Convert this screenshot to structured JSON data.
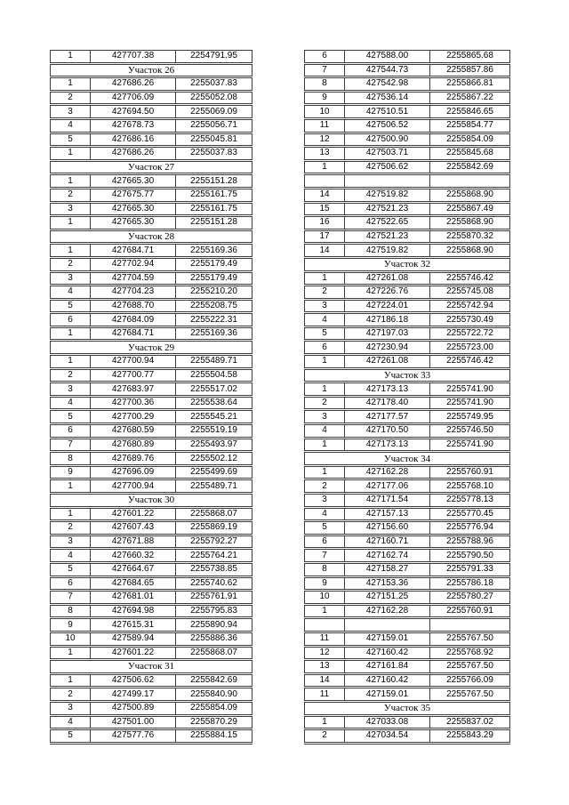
{
  "colors": {
    "background": "#ffffff",
    "table_border": "#3b3b3b",
    "text": "#000000"
  },
  "left_table": {
    "rows": [
      {
        "t": "d",
        "c": [
          "1",
          "427707.38",
          "2254791.95"
        ]
      },
      {
        "t": "h",
        "label": "Участок 26"
      },
      {
        "t": "d",
        "c": [
          "1",
          "427686.26",
          "2255037.83"
        ]
      },
      {
        "t": "d",
        "c": [
          "2",
          "427706.09",
          "2255052.08"
        ]
      },
      {
        "t": "d",
        "c": [
          "3",
          "427694.50",
          "2255069.09"
        ]
      },
      {
        "t": "d",
        "c": [
          "4",
          "427678.73",
          "2255056.71"
        ]
      },
      {
        "t": "d",
        "c": [
          "5",
          "427686.16",
          "2255045.81"
        ]
      },
      {
        "t": "d",
        "c": [
          "1",
          "427686.26",
          "2255037.83"
        ]
      },
      {
        "t": "h",
        "label": "Участок 27"
      },
      {
        "t": "d",
        "c": [
          "1",
          "427665.30",
          "2255151.28"
        ]
      },
      {
        "t": "d",
        "c": [
          "2",
          "427675.77",
          "2255161.75"
        ]
      },
      {
        "t": "d",
        "c": [
          "3",
          "427665.30",
          "2255161.75"
        ]
      },
      {
        "t": "d",
        "c": [
          "1",
          "427665.30",
          "2255151.28"
        ]
      },
      {
        "t": "h",
        "label": "Участок 28"
      },
      {
        "t": "d",
        "c": [
          "1",
          "427684.71",
          "2255169.36"
        ]
      },
      {
        "t": "d",
        "c": [
          "2",
          "427702.94",
          "2255179.49"
        ]
      },
      {
        "t": "d",
        "c": [
          "3",
          "427704.59",
          "2255179.49"
        ]
      },
      {
        "t": "d",
        "c": [
          "4",
          "427704.23",
          "2255210.20"
        ]
      },
      {
        "t": "d",
        "c": [
          "5",
          "427688.70",
          "2255208.75"
        ]
      },
      {
        "t": "d",
        "c": [
          "6",
          "427684.09",
          "2255222.31"
        ]
      },
      {
        "t": "d",
        "c": [
          "1",
          "427684.71",
          "2255169.36"
        ]
      },
      {
        "t": "h",
        "label": "Участок 29"
      },
      {
        "t": "d",
        "c": [
          "1",
          "427700.94",
          "2255489.71"
        ]
      },
      {
        "t": "d",
        "c": [
          "2",
          "427700.77",
          "2255504.58"
        ]
      },
      {
        "t": "d",
        "c": [
          "3",
          "427683.97",
          "2255517.02"
        ]
      },
      {
        "t": "d",
        "c": [
          "4",
          "427700.36",
          "2255538.64"
        ]
      },
      {
        "t": "d",
        "c": [
          "5",
          "427700.29",
          "2255545.21"
        ]
      },
      {
        "t": "d",
        "c": [
          "6",
          "427680.59",
          "2255519.19"
        ]
      },
      {
        "t": "d",
        "c": [
          "7",
          "427680.89",
          "2255493.97"
        ]
      },
      {
        "t": "d",
        "c": [
          "8",
          "427689.76",
          "2255502.12"
        ]
      },
      {
        "t": "d",
        "c": [
          "9",
          "427696.09",
          "2255499.69"
        ]
      },
      {
        "t": "d",
        "c": [
          "1",
          "427700.94",
          "2255489.71"
        ]
      },
      {
        "t": "h",
        "label": "Участок 30"
      },
      {
        "t": "d",
        "c": [
          "1",
          "427601.22",
          "2255868.07"
        ]
      },
      {
        "t": "d",
        "c": [
          "2",
          "427607.43",
          "2255869.19"
        ]
      },
      {
        "t": "d",
        "c": [
          "3",
          "427671.88",
          "2255792.27"
        ]
      },
      {
        "t": "d",
        "c": [
          "4",
          "427660.32",
          "2255764.21"
        ]
      },
      {
        "t": "d",
        "c": [
          "5",
          "427664.67",
          "2255738.85"
        ]
      },
      {
        "t": "d",
        "c": [
          "6",
          "427684.65",
          "2255740.62"
        ]
      },
      {
        "t": "d",
        "c": [
          "7",
          "427681.01",
          "2255761.91"
        ]
      },
      {
        "t": "d",
        "c": [
          "8",
          "427694.98",
          "2255795.83"
        ]
      },
      {
        "t": "d",
        "c": [
          "9",
          "427615.31",
          "2255890.94"
        ]
      },
      {
        "t": "d",
        "c": [
          "10",
          "427589.94",
          "2255886.36"
        ]
      },
      {
        "t": "d",
        "c": [
          "1",
          "427601.22",
          "2255868.07"
        ]
      },
      {
        "t": "h",
        "label": "Участок 31"
      },
      {
        "t": "d",
        "c": [
          "1",
          "427506.62",
          "2255842.69"
        ]
      },
      {
        "t": "d",
        "c": [
          "2",
          "427499.17",
          "2255840.90"
        ]
      },
      {
        "t": "d",
        "c": [
          "3",
          "427500.89",
          "2255854.09"
        ]
      },
      {
        "t": "d",
        "c": [
          "4",
          "427501.00",
          "2255870.29"
        ]
      },
      {
        "t": "d",
        "c": [
          "5",
          "427577.76",
          "2255884.15"
        ]
      }
    ]
  },
  "right_table": {
    "rows": [
      {
        "t": "d",
        "c": [
          "6",
          "427588.00",
          "2255865.68"
        ]
      },
      {
        "t": "d",
        "c": [
          "7",
          "427544.73",
          "2255857.86"
        ]
      },
      {
        "t": "d",
        "c": [
          "8",
          "427542.98",
          "2255866.81"
        ]
      },
      {
        "t": "d",
        "c": [
          "9",
          "427536.14",
          "2255867.22"
        ]
      },
      {
        "t": "d",
        "c": [
          "10",
          "427510.51",
          "2255846.65"
        ]
      },
      {
        "t": "d",
        "c": [
          "11",
          "427506.52",
          "2255854.77"
        ]
      },
      {
        "t": "d",
        "c": [
          "12",
          "427500.90",
          "2255854.09"
        ]
      },
      {
        "t": "d",
        "c": [
          "13",
          "427503.71",
          "2255845.68"
        ]
      },
      {
        "t": "d",
        "c": [
          "1",
          "427506.62",
          "2255842.69"
        ]
      },
      {
        "t": "e"
      },
      {
        "t": "d",
        "c": [
          "14",
          "427519.82",
          "2255868.90"
        ]
      },
      {
        "t": "d",
        "c": [
          "15",
          "427521.23",
          "2255867.49"
        ]
      },
      {
        "t": "d",
        "c": [
          "16",
          "427522.65",
          "2255868.90"
        ]
      },
      {
        "t": "d",
        "c": [
          "17",
          "427521.23",
          "2255870.32"
        ]
      },
      {
        "t": "d",
        "c": [
          "14",
          "427519.82",
          "2255868.90"
        ]
      },
      {
        "t": "h",
        "label": "Участок 32"
      },
      {
        "t": "d",
        "c": [
          "1",
          "427261.08",
          "2255746.42"
        ]
      },
      {
        "t": "d",
        "c": [
          "2",
          "427226.76",
          "2255745.08"
        ]
      },
      {
        "t": "d",
        "c": [
          "3",
          "427224.01",
          "2255742.94"
        ]
      },
      {
        "t": "d",
        "c": [
          "4",
          "427186.18",
          "2255730.49"
        ]
      },
      {
        "t": "d",
        "c": [
          "5",
          "427197.03",
          "2255722.72"
        ]
      },
      {
        "t": "d",
        "c": [
          "6",
          "427230.94",
          "2255723.00"
        ]
      },
      {
        "t": "d",
        "c": [
          "1",
          "427261.08",
          "2255746.42"
        ]
      },
      {
        "t": "h",
        "label": "Участок 33"
      },
      {
        "t": "d",
        "c": [
          "1",
          "427173.13",
          "2255741.90"
        ]
      },
      {
        "t": "d",
        "c": [
          "2",
          "427178.40",
          "2255741.90"
        ]
      },
      {
        "t": "d",
        "c": [
          "3",
          "427177.57",
          "2255749.95"
        ]
      },
      {
        "t": "d",
        "c": [
          "4",
          "427170.50",
          "2255746.50"
        ]
      },
      {
        "t": "d",
        "c": [
          "1",
          "427173.13",
          "2255741.90"
        ]
      },
      {
        "t": "h",
        "label": "Участок 34"
      },
      {
        "t": "d",
        "c": [
          "1",
          "427162.28",
          "2255760.91"
        ]
      },
      {
        "t": "d",
        "c": [
          "2",
          "427177.06",
          "2255768.10"
        ]
      },
      {
        "t": "d",
        "c": [
          "3",
          "427171.54",
          "2255778.13"
        ]
      },
      {
        "t": "d",
        "c": [
          "4",
          "427157.13",
          "2255770.45"
        ]
      },
      {
        "t": "d",
        "c": [
          "5",
          "427156.60",
          "2255776.94"
        ]
      },
      {
        "t": "d",
        "c": [
          "6",
          "427160.71",
          "2255788.96"
        ]
      },
      {
        "t": "d",
        "c": [
          "7",
          "427162.74",
          "2255790.50"
        ]
      },
      {
        "t": "d",
        "c": [
          "8",
          "427158.27",
          "2255791.33"
        ]
      },
      {
        "t": "d",
        "c": [
          "9",
          "427153.36",
          "2255786.18"
        ]
      },
      {
        "t": "d",
        "c": [
          "10",
          "427151.25",
          "2255780.27"
        ]
      },
      {
        "t": "d",
        "c": [
          "1",
          "427162.28",
          "2255760.91"
        ]
      },
      {
        "t": "e"
      },
      {
        "t": "d",
        "c": [
          "11",
          "427159.01",
          "2255767.50"
        ]
      },
      {
        "t": "d",
        "c": [
          "12",
          "427160.42",
          "2255768.92"
        ]
      },
      {
        "t": "d",
        "c": [
          "13",
          "427161.84",
          "2255767.50"
        ]
      },
      {
        "t": "d",
        "c": [
          "14",
          "427160.42",
          "2255766.09"
        ]
      },
      {
        "t": "d",
        "c": [
          "11",
          "427159.01",
          "2255767.50"
        ]
      },
      {
        "t": "h",
        "label": "Участок 35"
      },
      {
        "t": "d",
        "c": [
          "1",
          "427033.08",
          "2255837.02"
        ]
      },
      {
        "t": "d",
        "c": [
          "2",
          "427034.54",
          "2255843.29"
        ]
      }
    ]
  }
}
